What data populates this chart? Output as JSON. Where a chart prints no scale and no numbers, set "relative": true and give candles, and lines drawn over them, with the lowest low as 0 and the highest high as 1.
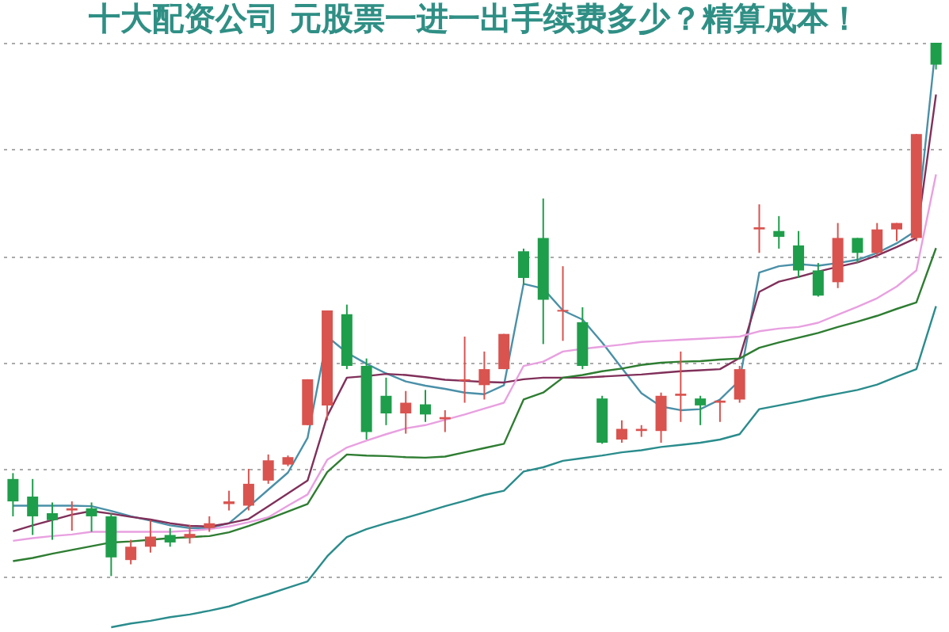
{
  "chart_data": {
    "type": "candlestick",
    "title": "十大配资公司 元股票一进一出手续费多少？精算成本！",
    "relative": true,
    "grid": "y",
    "categories": [
      null,
      null,
      null,
      null,
      null,
      null,
      null,
      null,
      null,
      null,
      null,
      null,
      null,
      null,
      null,
      null,
      null,
      null,
      null,
      null,
      null,
      null,
      null,
      null,
      null,
      null,
      null,
      null,
      null,
      null,
      null,
      null,
      null,
      null,
      null,
      null,
      null,
      null,
      null,
      null,
      null,
      null,
      null,
      null,
      null,
      null,
      null,
      null
    ],
    "ohlc": [
      [
        0.182,
        0.193,
        0.112,
        0.14
      ],
      [
        0.149,
        0.182,
        0.077,
        0.112
      ],
      [
        0.118,
        0.138,
        0.068,
        0.105
      ],
      [
        0.123,
        0.14,
        0.085,
        0.127
      ],
      [
        0.127,
        0.138,
        0.083,
        0.112
      ],
      [
        0.112,
        0.118,
        0,
        0.035
      ],
      [
        0.03,
        0.068,
        0.022,
        0.055
      ],
      [
        0.055,
        0.105,
        0.044,
        0.074
      ],
      [
        0.077,
        0.09,
        0.055,
        0.063
      ],
      [
        0.072,
        0.096,
        0.061,
        0.079
      ],
      [
        0.09,
        0.112,
        0.083,
        0.099
      ],
      [
        0.135,
        0.16,
        0.123,
        0.14
      ],
      [
        0.132,
        0.201,
        0.123,
        0.173
      ],
      [
        0.179,
        0.228,
        0.173,
        0.217
      ],
      [
        0.209,
        0.226,
        0.206,
        0.223
      ],
      [
        0.283,
        0.369,
        0.283,
        0.369
      ],
      [
        0.32,
        0.498,
        0.292,
        0.498
      ],
      [
        0.491,
        0.509,
        0.388,
        0.394
      ],
      [
        0.394,
        0.408,
        0.256,
        0.27
      ],
      [
        0.338,
        0.372,
        0.283,
        0.305
      ],
      [
        0.305,
        0.347,
        0.267,
        0.325
      ],
      [
        0.322,
        0.349,
        0.289,
        0.303
      ],
      [
        0.294,
        0.311,
        0.27,
        0.298
      ],
      [
        0.366,
        0.449,
        0.325,
        0.369
      ],
      [
        0.358,
        0.421,
        0.331,
        0.388
      ],
      [
        0.388,
        0.454,
        0.388,
        0.454
      ],
      [
        0.609,
        0.614,
        0.546,
        0.559
      ],
      [
        0.634,
        0.708,
        0.435,
        0.518
      ],
      [
        0.496,
        0.581,
        0.441,
        0.499
      ],
      [
        0.476,
        0.504,
        0.388,
        0.394
      ],
      [
        0.333,
        0.338,
        0.248,
        0.25
      ],
      [
        0.256,
        0.292,
        0.25,
        0.276
      ],
      [
        0.272,
        0.283,
        0.261,
        0.276
      ],
      [
        0.272,
        0.344,
        0.25,
        0.338
      ],
      [
        0.338,
        0.421,
        0.289,
        0.342
      ],
      [
        0.333,
        0.338,
        0.283,
        0.32
      ],
      [
        0.325,
        0.331,
        0.289,
        0.329
      ],
      [
        0.331,
        0.394,
        0.325,
        0.388
      ],
      [
        0.65,
        0.697,
        0.606,
        0.654
      ],
      [
        0.647,
        0.675,
        0.614,
        0.636
      ],
      [
        0.62,
        0.647,
        0.559,
        0.573
      ],
      [
        0.573,
        0.587,
        0.524,
        0.526
      ],
      [
        0.551,
        0.662,
        0.54,
        0.634
      ],
      [
        0.634,
        0.634,
        0.587,
        0.606
      ],
      [
        0.606,
        0.662,
        0.601,
        0.65
      ],
      [
        0.65,
        0.662,
        0.628,
        0.662
      ],
      [
        0.634,
        0.829,
        0.628,
        0.829
      ],
      [
        1,
        1,
        0.95,
        0.959
      ]
    ],
    "colors": [
      "#1e9e4a",
      "#1e9e4a",
      "#1e9e4a",
      "#d9534f",
      "#1e9e4a",
      "#1e9e4a",
      "#d9534f",
      "#d9534f",
      "#1e9e4a",
      "#d9534f",
      "#d9534f",
      "#d9534f",
      "#d9534f",
      "#d9534f",
      "#d9534f",
      "#d9534f",
      "#d9534f",
      "#1e9e4a",
      "#1e9e4a",
      "#1e9e4a",
      "#d9534f",
      "#1e9e4a",
      "#d9534f",
      "#d9534f",
      "#d9534f",
      "#d9534f",
      "#1e9e4a",
      "#1e9e4a",
      "#d9534f",
      "#1e9e4a",
      "#1e9e4a",
      "#d9534f",
      "#d9534f",
      "#d9534f",
      "#d9534f",
      "#1e9e4a",
      "#d9534f",
      "#d9534f",
      "#d9534f",
      "#1e9e4a",
      "#1e9e4a",
      "#1e9e4a",
      "#d9534f",
      "#1e9e4a",
      "#d9534f",
      "#d9534f",
      "#d9534f",
      "#1e9e4a"
    ],
    "series": [
      {
        "type": "line",
        "color": "#4a90a8",
        "values": [
          0.132,
          0.132,
          0.132,
          0.132,
          0.131,
          0.122,
          0.112,
          0.104,
          0.095,
          0.09,
          0.09,
          0.099,
          0.13,
          0.162,
          0.194,
          0.259,
          0.449,
          0.419,
          0.398,
          0.38,
          0.365,
          0.357,
          0.351,
          0.344,
          0.341,
          0.358,
          0.548,
          0.539,
          0.498,
          0.481,
          0.438,
          0.39,
          0.343,
          0.318,
          0.311,
          0.313,
          0.331,
          0.367,
          0.569,
          0.581,
          0.585,
          0.582,
          0.587,
          0.593,
          0.606,
          0.624,
          0.648,
          1
        ]
      },
      {
        "type": "line",
        "color": "#80305a",
        "values": [
          0.084,
          0.095,
          0.105,
          0.115,
          0.122,
          0.117,
          0.111,
          0.106,
          0.099,
          0.094,
          0.093,
          0.099,
          0.107,
          0.131,
          0.155,
          0.179,
          0.3,
          0.372,
          0.375,
          0.379,
          0.377,
          0.373,
          0.368,
          0.366,
          0.364,
          0.363,
          0.369,
          0.372,
          0.372,
          0.372,
          0.374,
          0.376,
          0.378,
          0.381,
          0.384,
          0.386,
          0.388,
          0.409,
          0.533,
          0.552,
          0.561,
          0.571,
          0.58,
          0.588,
          0.601,
          0.617,
          0.634,
          0.903
        ]
      },
      {
        "type": "line",
        "color": "#e8a0e0",
        "values": [
          0.066,
          0.071,
          0.075,
          0.078,
          0.083,
          0.083,
          0.083,
          0.083,
          0.083,
          0.085,
          0.088,
          0.093,
          0.101,
          0.11,
          0.132,
          0.153,
          0.218,
          0.241,
          0.254,
          0.266,
          0.277,
          0.283,
          0.293,
          0.303,
          0.314,
          0.325,
          0.394,
          0.402,
          0.421,
          0.426,
          0.43,
          0.434,
          0.439,
          0.441,
          0.443,
          0.445,
          0.447,
          0.449,
          0.459,
          0.464,
          0.467,
          0.475,
          0.49,
          0.505,
          0.521,
          0.543,
          0.573,
          0.753
        ]
      },
      {
        "type": "line",
        "color": "#2e7d32",
        "values": [
          0.028,
          0.034,
          0.042,
          0.049,
          0.056,
          0.063,
          0.065,
          0.068,
          0.071,
          0.073,
          0.075,
          0.082,
          0.094,
          0.107,
          0.121,
          0.135,
          0.195,
          0.228,
          0.226,
          0.225,
          0.223,
          0.222,
          0.224,
          0.232,
          0.24,
          0.248,
          0.331,
          0.344,
          0.372,
          0.377,
          0.384,
          0.389,
          0.396,
          0.4,
          0.402,
          0.403,
          0.406,
          0.408,
          0.428,
          0.438,
          0.447,
          0.456,
          0.467,
          0.477,
          0.488,
          0.501,
          0.513,
          0.615
        ]
      },
      {
        "type": "line",
        "color": "#2a8c8c",
        "values": [
          null,
          null,
          null,
          null,
          null,
          -0.096,
          -0.089,
          -0.084,
          -0.077,
          -0.072,
          -0.065,
          -0.057,
          -0.045,
          -0.034,
          -0.022,
          -0.01,
          0.037,
          0.073,
          0.088,
          0.099,
          0.109,
          0.12,
          0.131,
          0.141,
          0.152,
          0.16,
          0.196,
          0.204,
          0.216,
          0.221,
          0.226,
          0.232,
          0.236,
          0.242,
          0.246,
          0.25,
          0.256,
          0.266,
          0.313,
          0.32,
          0.327,
          0.335,
          0.342,
          0.349,
          0.359,
          0.374,
          0.388,
          0.506
        ]
      }
    ]
  }
}
